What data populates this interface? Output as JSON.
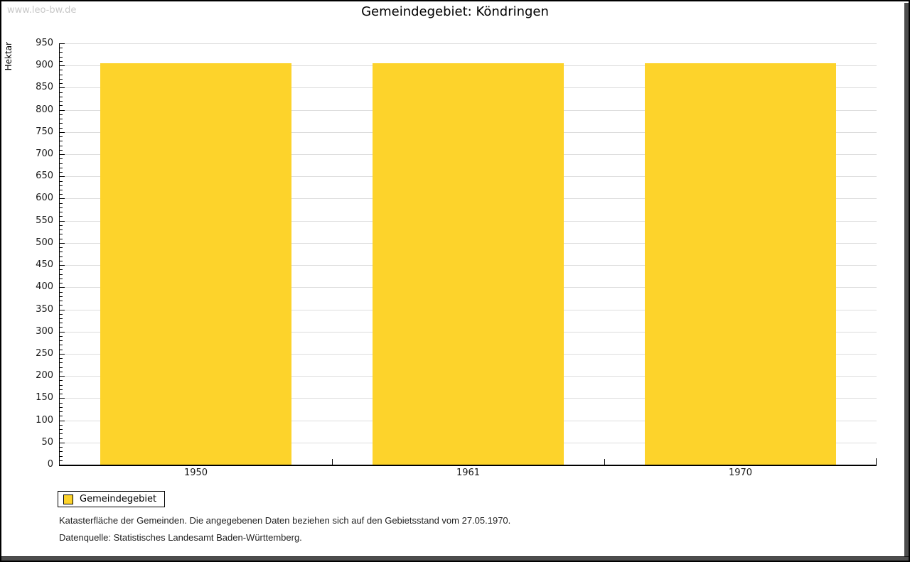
{
  "watermark": "www.leo-bw.de",
  "chart_data": {
    "type": "bar",
    "title": "Gemeindegebiet: Köndringen",
    "categories": [
      "1950",
      "1961",
      "1970"
    ],
    "series": [
      {
        "name": "Gemeindegebiet",
        "values": [
          905,
          905,
          905
        ]
      }
    ],
    "xlabel": "",
    "ylabel": "Hektar",
    "ylim": [
      0,
      950
    ],
    "ytick_step": 50,
    "yminor_step": 10,
    "grid": true,
    "legend_position": "bottom-left",
    "colors": {
      "bar": "#FDD32B",
      "grid": "#DDDDDD",
      "axis": "#000000",
      "watermark": "#C8C8C8"
    }
  },
  "footer": {
    "note": "Katasterfläche der Gemeinden. Die angegebenen Daten beziehen sich auf den Gebietsstand vom 27.05.1970.",
    "source": "Datenquelle: Statistisches Landesamt Baden-Württemberg."
  }
}
